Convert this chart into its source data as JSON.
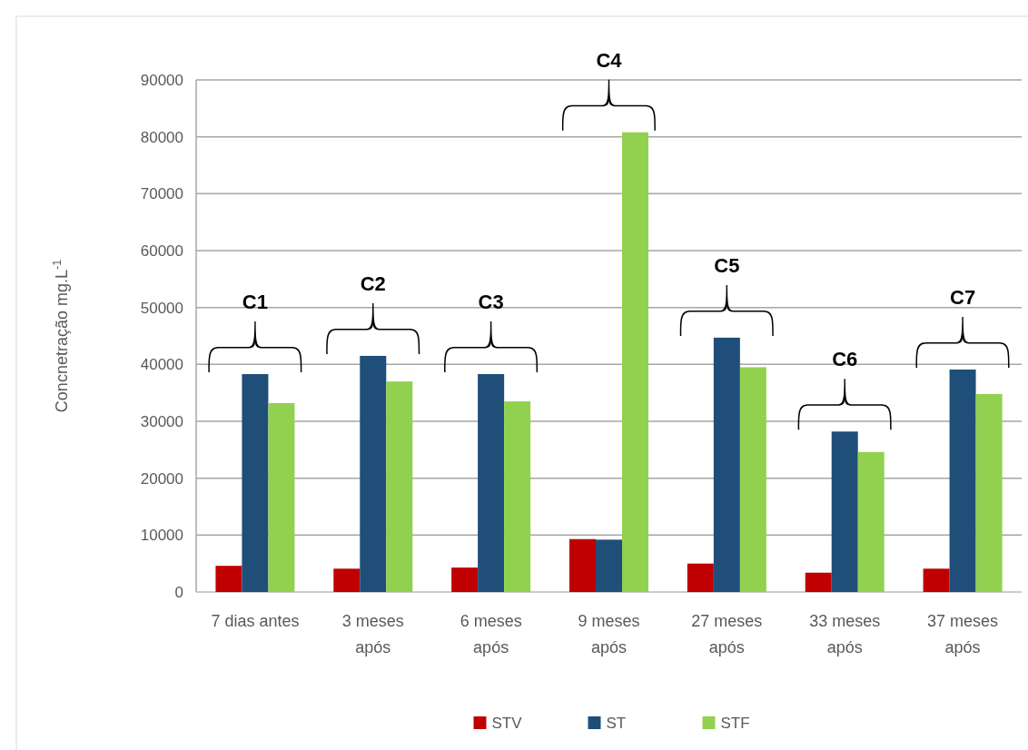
{
  "chart_data": {
    "type": "bar",
    "ylabel": "Concnetração mg.L$^{-1}$",
    "categories": [
      "7 dias antes",
      "3 meses após",
      "6 meses após",
      "9 meses após",
      "27 meses após",
      "33 meses após",
      "37 meses após"
    ],
    "series": [
      {
        "name": "STV",
        "color": "#c00000",
        "values": [
          4600,
          4100,
          4300,
          9300,
          5000,
          3400,
          4100
        ]
      },
      {
        "name": "ST",
        "color": "#1f4e79",
        "values": [
          38300,
          41500,
          38300,
          9200,
          44700,
          28200,
          39100
        ]
      },
      {
        "name": "STF",
        "color": "#92d050",
        "values": [
          33200,
          37000,
          33500,
          80800,
          39500,
          24600,
          34800
        ]
      }
    ],
    "ylim": [
      0,
      90000
    ],
    "yticks": [
      0,
      10000,
      20000,
      30000,
      40000,
      50000,
      60000,
      70000,
      80000,
      90000
    ],
    "grid": "y",
    "legend": "bottom",
    "annotations": [
      "C1",
      "C2",
      "C3",
      "C4",
      "C5",
      "C6",
      "C7"
    ]
  }
}
